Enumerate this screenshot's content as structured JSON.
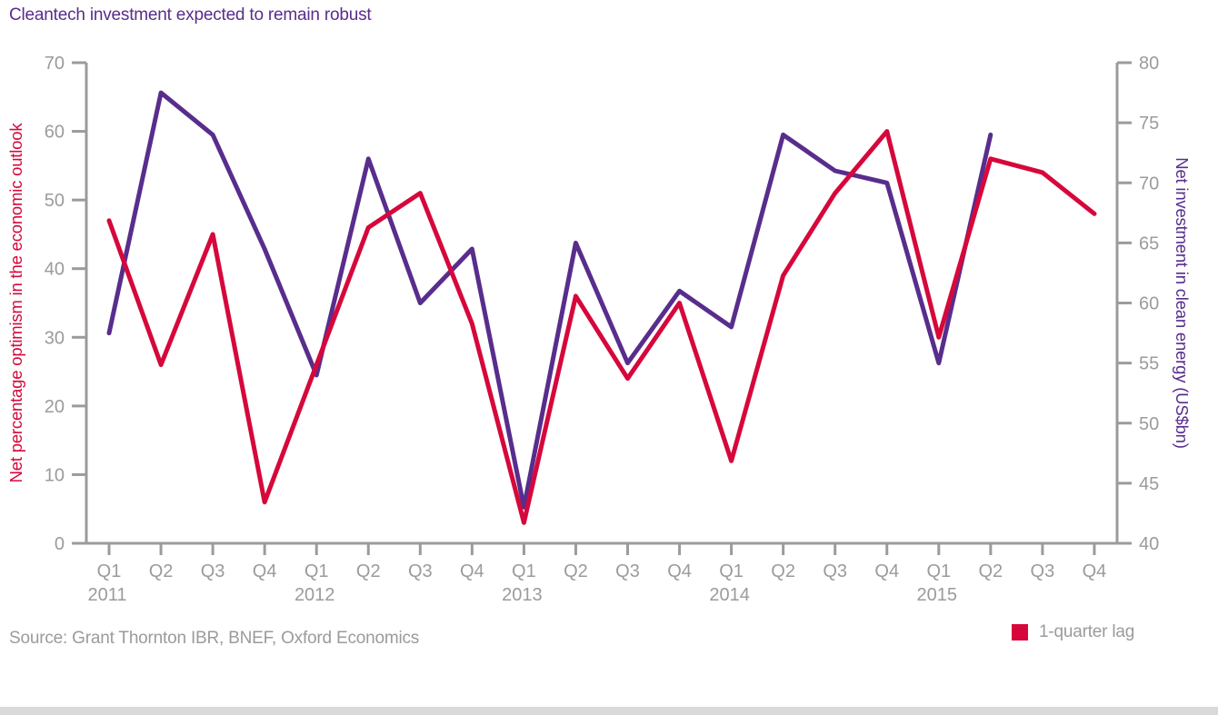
{
  "title": "Cleantech investment expected to remain robust",
  "source": "Source: Grant Thornton IBR, BNEF, Oxford Economics",
  "legend": {
    "items": [
      {
        "label": "1-quarter lag",
        "color": "#d6083b"
      }
    ]
  },
  "colors": {
    "optimism_line": "#d6083b",
    "investment_line": "#582d8c",
    "axis": "#9b9b9b",
    "title": "#582d8c",
    "bottom_strip": "#d9d9d9"
  },
  "chart_data": {
    "type": "line",
    "categories": [
      "Q1 2011",
      "Q2 2011",
      "Q3 2011",
      "Q4 2011",
      "Q1 2012",
      "Q2 2012",
      "Q3 2012",
      "Q4 2012",
      "Q1 2013",
      "Q2 2013",
      "Q3 2013",
      "Q4 2013",
      "Q1 2014",
      "Q2 2014",
      "Q3 2014",
      "Q4 2014",
      "Q1 2015",
      "Q2 2015",
      "Q3 2015",
      "Q4 2015"
    ],
    "x_labels": [
      {
        "quarter": "Q1",
        "year": "2011"
      },
      {
        "quarter": "Q2"
      },
      {
        "quarter": "Q3"
      },
      {
        "quarter": "Q4"
      },
      {
        "quarter": "Q1",
        "year": "2012"
      },
      {
        "quarter": "Q2"
      },
      {
        "quarter": "Q3"
      },
      {
        "quarter": "Q4"
      },
      {
        "quarter": "Q1",
        "year": "2013"
      },
      {
        "quarter": "Q2"
      },
      {
        "quarter": "Q3"
      },
      {
        "quarter": "Q4"
      },
      {
        "quarter": "Q1",
        "year": "2014"
      },
      {
        "quarter": "Q2"
      },
      {
        "quarter": "Q3"
      },
      {
        "quarter": "Q4"
      },
      {
        "quarter": "Q1",
        "year": "2015"
      },
      {
        "quarter": "Q2"
      },
      {
        "quarter": "Q3"
      },
      {
        "quarter": "Q4"
      }
    ],
    "series": [
      {
        "name": "Net investment in clean energy (US$bn)",
        "axis": "right",
        "color": "#582d8c",
        "values": [
          57.5,
          77.5,
          74,
          64.5,
          54,
          72,
          60,
          64.5,
          43,
          65,
          55,
          61,
          58,
          74,
          71,
          70,
          55,
          74,
          null,
          null
        ]
      },
      {
        "name": "Net percentage optimism in the economic outlook (1-quarter lag)",
        "axis": "left",
        "color": "#d6083b",
        "values": [
          47,
          26,
          45,
          6,
          26,
          46,
          51,
          32,
          3,
          36,
          24,
          35,
          12,
          39,
          51,
          60,
          30,
          56,
          54,
          48
        ]
      }
    ],
    "left_axis": {
      "label": "Net percentage optimism in the economic outlook",
      "min": 0,
      "max": 70,
      "step": 10,
      "ticks": [
        0,
        10,
        20,
        30,
        40,
        50,
        60,
        70
      ]
    },
    "right_axis": {
      "label": "Net investment in clean energy (US$bn)",
      "min": 40,
      "max": 80,
      "step": 5,
      "ticks": [
        40,
        45,
        50,
        55,
        60,
        65,
        70,
        75,
        80
      ]
    },
    "grid": false,
    "legend_position": "bottom-right"
  }
}
